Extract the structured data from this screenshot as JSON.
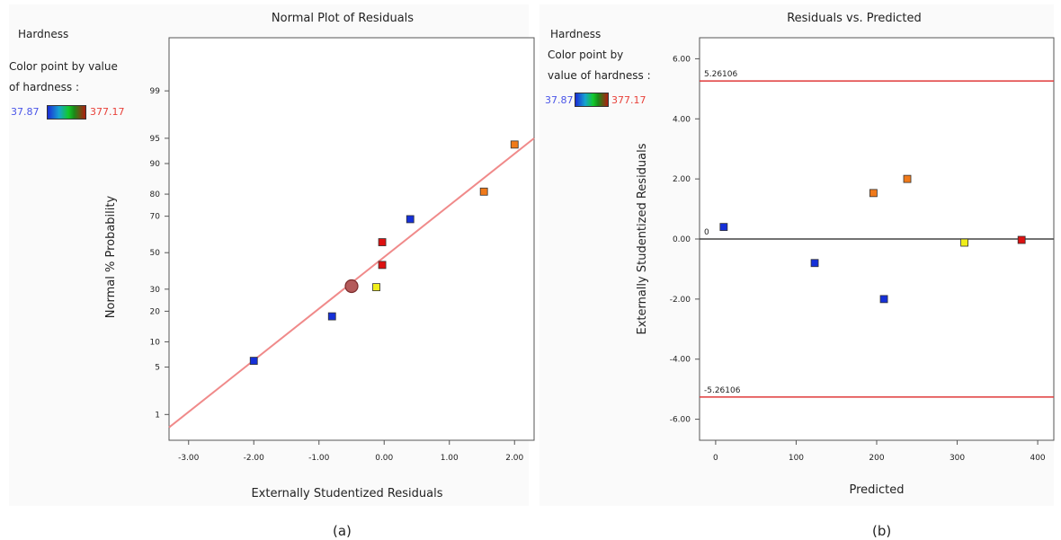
{
  "captions": {
    "a": "(a)",
    "b": "(b)"
  },
  "legend_a": {
    "title": "Hardness",
    "line1": "Color point by value",
    "line2": "of hardness :",
    "min": "37.87",
    "max": "377.17"
  },
  "legend_b": {
    "title": "Hardness",
    "line1": "Color point by",
    "line2": "value of hardness :",
    "min": "37.87",
    "max": "377.17"
  },
  "colors": {
    "blue": "#1530d8",
    "red": "#dd1111",
    "orange": "#f07a1a",
    "yellow": "#f0ee1a",
    "refline": "#f08a8a",
    "limitline": "#e03a3a"
  },
  "chart_data": [
    {
      "type": "scatter",
      "title": "Normal Plot of Residuals",
      "xlabel": "Externally Studentized Residuals",
      "ylabel": "Normal % Probability",
      "xlim": [
        -3.3,
        2.3
      ],
      "ylim_probability": [
        0.35,
        99.9
      ],
      "x_ticks": [
        "-3.00",
        "-2.00",
        "-1.00",
        "0.00",
        "1.00",
        "2.00"
      ],
      "x_tick_values": [
        -3,
        -2,
        -1,
        0,
        1,
        2
      ],
      "y_ticks": [
        "1",
        "5",
        "10",
        "20",
        "30",
        "50",
        "70",
        "80",
        "90",
        "95",
        "99"
      ],
      "y_tick_values": [
        1,
        5,
        10,
        20,
        30,
        50,
        70,
        80,
        90,
        95,
        99
      ],
      "points": [
        {
          "x": -2.0,
          "y": 6.0,
          "color": "blue"
        },
        {
          "x": -0.8,
          "y": 18.0,
          "color": "blue"
        },
        {
          "x": -0.12,
          "y": 31.0,
          "color": "yellow"
        },
        {
          "x": -0.03,
          "y": 43.0,
          "color": "red"
        },
        {
          "x": -0.03,
          "y": 56.0,
          "color": "red"
        },
        {
          "x": 0.4,
          "y": 68.5,
          "color": "blue"
        },
        {
          "x": 1.53,
          "y": 81.0,
          "color": "orange"
        },
        {
          "x": 2.0,
          "y": 94.0,
          "color": "orange"
        }
      ],
      "highlight_point": {
        "x": -0.5,
        "y": 31.5
      },
      "reference_line": {
        "from": {
          "x": -3.3,
          "y": 0.6
        },
        "to": {
          "x": 2.3,
          "y": 95.0
        }
      }
    },
    {
      "type": "scatter",
      "title": "Residuals vs. Predicted",
      "xlabel": "Predicted",
      "ylabel": "Externally Studentized Residuals",
      "xlim": [
        -20,
        420
      ],
      "ylim": [
        -6.7,
        6.7
      ],
      "x_ticks": [
        "0",
        "100",
        "200",
        "300",
        "400"
      ],
      "x_tick_values": [
        0,
        100,
        200,
        300,
        400
      ],
      "y_ticks": [
        "6.00",
        "4.00",
        "2.00",
        "0.00",
        "-2.00",
        "-4.00",
        "-6.00"
      ],
      "y_tick_values": [
        6,
        4,
        2,
        0,
        -2,
        -4,
        -6
      ],
      "limit_upper": {
        "value": 5.26106,
        "label": "5.26106"
      },
      "limit_lower": {
        "value": -5.26106,
        "label": "-5.26106"
      },
      "zero_label": "0",
      "points": [
        {
          "x": 10,
          "y": 0.4,
          "color": "blue"
        },
        {
          "x": 123,
          "y": -0.8,
          "color": "blue"
        },
        {
          "x": 196,
          "y": 1.53,
          "color": "orange"
        },
        {
          "x": 209,
          "y": -2.0,
          "color": "blue"
        },
        {
          "x": 238,
          "y": 2.0,
          "color": "orange"
        },
        {
          "x": 309,
          "y": -0.12,
          "color": "yellow"
        },
        {
          "x": 380,
          "y": -0.03,
          "color": "red"
        }
      ]
    }
  ]
}
